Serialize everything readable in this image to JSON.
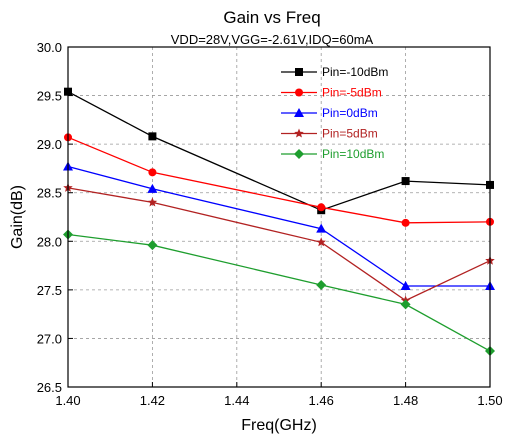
{
  "chart_data": {
    "type": "line",
    "title": "Gain vs  Freq",
    "subtitle": "VDD=28V,VGG=-2.61V,IDQ=60mA",
    "xlabel": "Freq(GHz)",
    "ylabel": "Gain(dB)",
    "xlim": [
      1.4,
      1.5
    ],
    "ylim": [
      26.5,
      30.0
    ],
    "xticks": [
      "1.40",
      "1.42",
      "1.44",
      "1.46",
      "1.48",
      "1.50"
    ],
    "yticks": [
      "26.5",
      "27.0",
      "27.5",
      "28.0",
      "28.5",
      "29.0",
      "29.5",
      "30.0"
    ],
    "grid": true,
    "legend_position": "top-right",
    "x": [
      1.4,
      1.42,
      1.46,
      1.48,
      1.5
    ],
    "series": [
      {
        "name": "Pin=-10dBm",
        "color": "#000000",
        "marker": "square",
        "values": [
          29.54,
          29.08,
          28.32,
          28.62,
          28.58
        ]
      },
      {
        "name": "Pin=-5dBm",
        "color": "#ff0000",
        "marker": "circle",
        "values": [
          29.07,
          28.71,
          28.35,
          28.19,
          28.2
        ]
      },
      {
        "name": "Pin=0dBm",
        "color": "#0000ff",
        "marker": "triangle",
        "values": [
          28.77,
          28.54,
          28.13,
          27.54,
          27.54
        ]
      },
      {
        "name": "Pin=5dBm",
        "color": "#b22222",
        "marker": "star",
        "values": [
          28.55,
          28.4,
          27.99,
          27.39,
          27.8
        ]
      },
      {
        "name": "Pin=10dBm",
        "color": "#1e9e2e",
        "marker": "diamond",
        "values": [
          28.07,
          27.96,
          27.55,
          27.35,
          26.87
        ]
      }
    ]
  }
}
